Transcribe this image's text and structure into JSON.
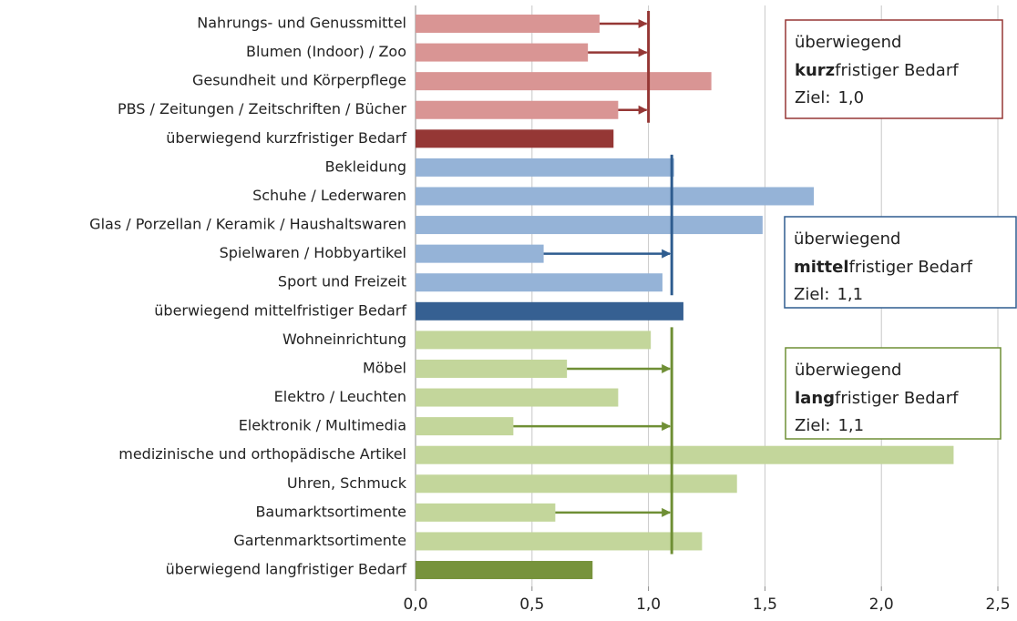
{
  "chart_data": {
    "type": "bar",
    "orientation": "horizontal",
    "xlim": [
      0,
      2.5
    ],
    "xticks": [
      {
        "value": 0,
        "label": "0,0"
      },
      {
        "value": 0.5,
        "label": "0,5"
      },
      {
        "value": 1,
        "label": "1,0"
      },
      {
        "value": 1.5,
        "label": "1,5"
      },
      {
        "value": 2,
        "label": "2,0"
      },
      {
        "value": 2.5,
        "label": "2,5"
      }
    ],
    "grid": true,
    "groups": [
      {
        "categories": [
          "Nahrungs- und Genussmittel",
          "Blumen (Indoor) / Zoo",
          "Gesundheit und Körperpflege",
          "PBS / Zeitungen / Zeitschriften / Bücher"
        ],
        "values": [
          0.79,
          0.74,
          1.27,
          0.87
        ],
        "arrows": [
          true,
          true,
          false,
          true
        ],
        "total_label": "überwiegend kurzfristiger Bedarf",
        "total_value": 0.85,
        "color": "#d99594",
        "total_color": "#953735",
        "line_color": "#953735",
        "target": {
          "value": 1.0,
          "label": "1,0"
        },
        "box": {
          "line1": "überwiegend",
          "bold": "kurz",
          "rest": "fristiger Bedarf",
          "goal": "Ziel:"
        }
      },
      {
        "categories": [
          "Bekleidung",
          "Schuhe / Lederwaren",
          "Glas / Porzellan / Keramik / Haushaltswaren",
          "Spielwaren / Hobbyartikel",
          "Sport und Freizeit"
        ],
        "values": [
          1.11,
          1.71,
          1.49,
          0.55,
          1.06
        ],
        "arrows": [
          false,
          false,
          false,
          true,
          false
        ],
        "total_label": "überwiegend mittelfristiger Bedarf",
        "total_value": 1.15,
        "color": "#95b3d7",
        "total_color": "#366092",
        "line_color": "#2e5c8f",
        "target": {
          "value": 1.1,
          "label": "1,1"
        },
        "box": {
          "line1": "überwiegend",
          "bold": "mittel",
          "rest": "fristiger Bedarf",
          "goal": "Ziel:"
        }
      },
      {
        "categories": [
          "Wohneinrichtung",
          "Möbel",
          "Elektro / Leuchten",
          "Elektronik / Multimedia",
          "medizinische und orthopädische Artikel",
          "Uhren, Schmuck",
          "Baumarktsortimente",
          "Gartenmarktsortimente"
        ],
        "values": [
          1.01,
          0.65,
          0.87,
          0.42,
          2.31,
          1.38,
          0.6,
          1.23
        ],
        "arrows": [
          false,
          true,
          false,
          true,
          false,
          false,
          true,
          false
        ],
        "total_label": "überwiegend langfristiger Bedarf",
        "total_value": 0.76,
        "color": "#c3d69b",
        "total_color": "#77933c",
        "line_color": "#6f8f35",
        "target": {
          "value": 1.1,
          "label": "1,1"
        },
        "box": {
          "line1": "überwiegend",
          "bold": "lang",
          "rest": "fristiger Bedarf",
          "goal": "Ziel:"
        }
      }
    ]
  }
}
